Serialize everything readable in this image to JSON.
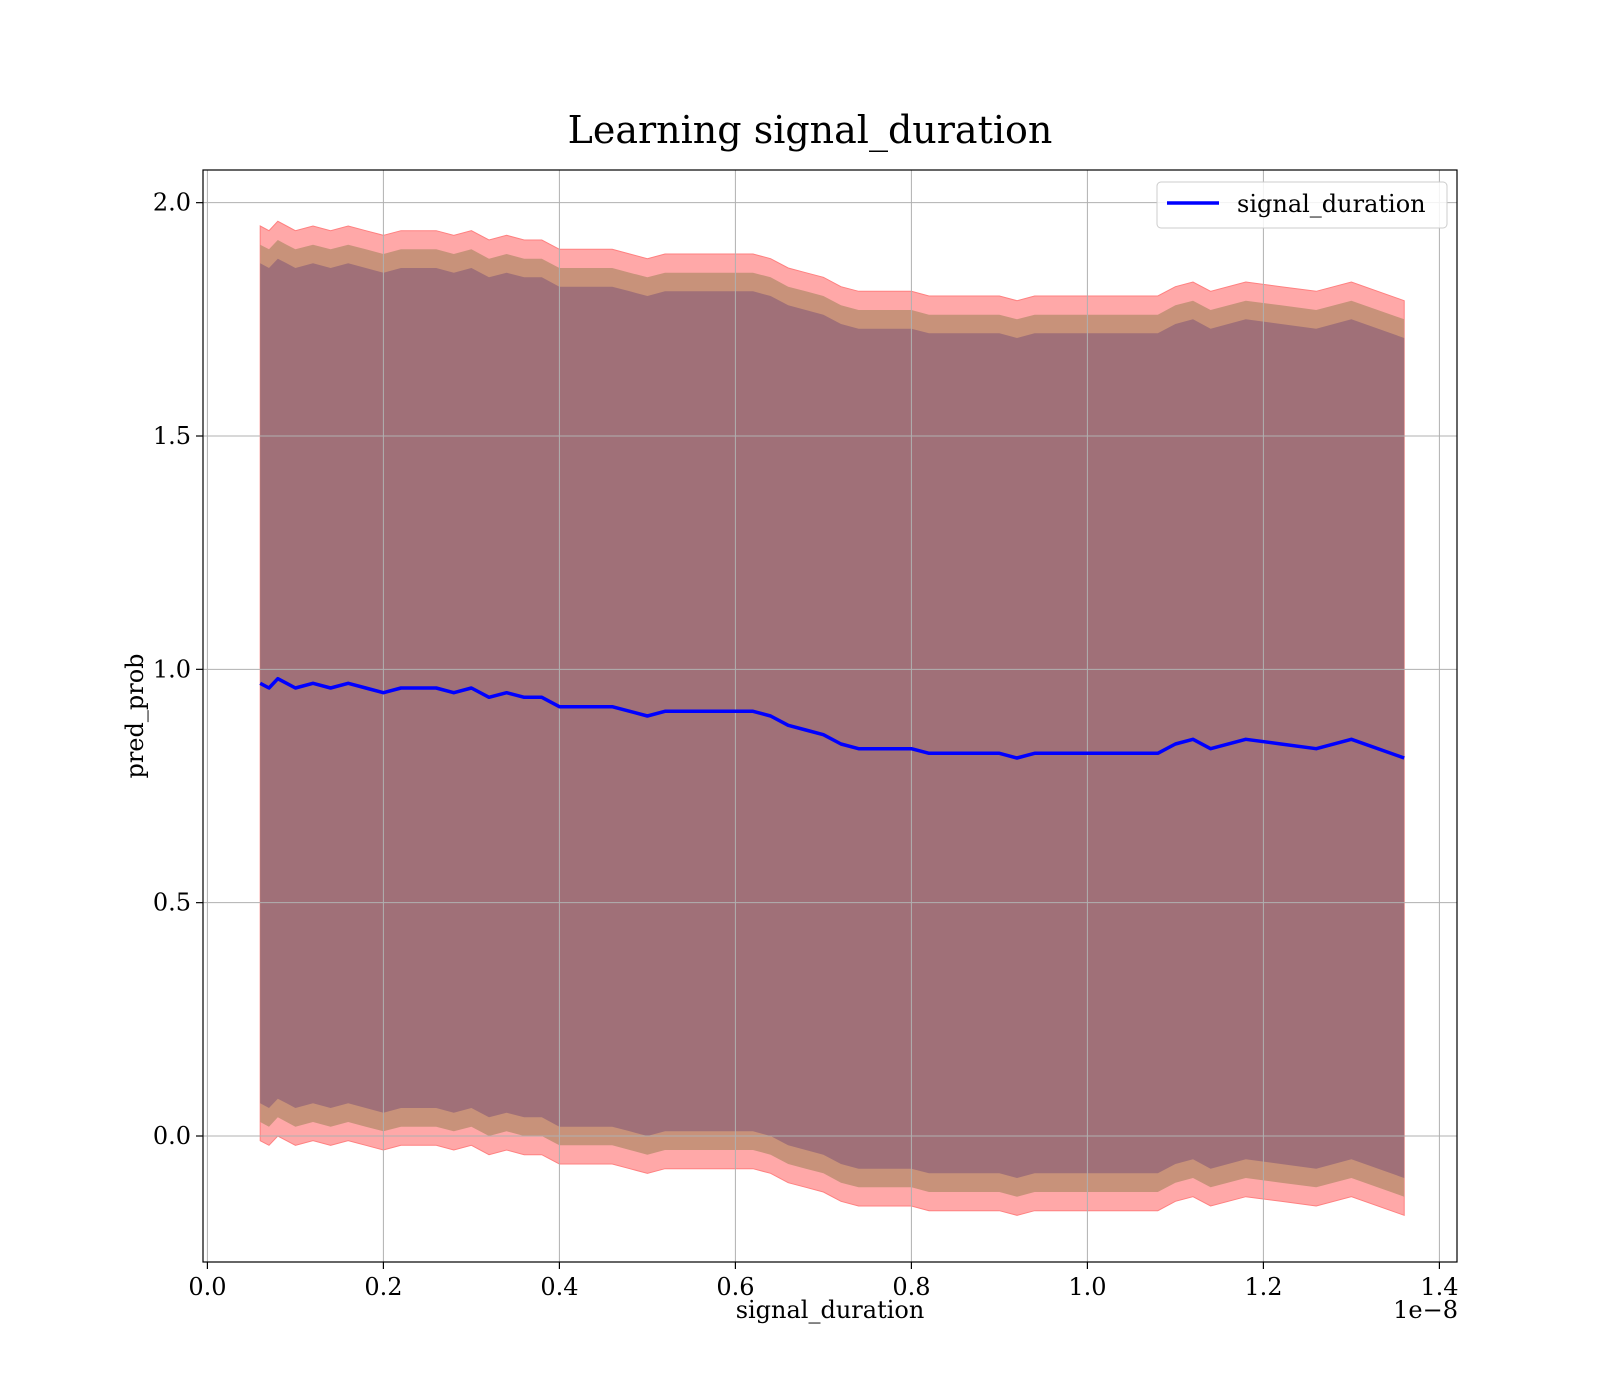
{
  "chart_data": {
    "type": "line",
    "title": "Learning signal_duration",
    "xlabel": "signal_duration",
    "ylabel": "pred_prob",
    "x_offset_label": "1e−8",
    "xlim": [
      -0.005,
      1.42
    ],
    "ylim": [
      -0.27,
      2.07
    ],
    "x_ticks": [
      0.0,
      0.2,
      0.4,
      0.6,
      0.8,
      1.0,
      1.2,
      1.4
    ],
    "x_tick_labels": [
      "0.0",
      "0.2",
      "0.4",
      "0.6",
      "0.8",
      "1.0",
      "1.2",
      "1.4"
    ],
    "y_ticks": [
      0.0,
      0.5,
      1.0,
      1.5,
      2.0
    ],
    "y_tick_labels": [
      "0.0",
      "0.5",
      "1.0",
      "1.5",
      "2.0"
    ],
    "grid": true,
    "legend_position": "top-right",
    "colors": {
      "line": "#0000ff",
      "outer_band": "#ff9999",
      "middle_band": "#c8927a",
      "inner_band": "#a07078",
      "grid": "#b0b0b0"
    },
    "x": [
      0.06,
      0.07,
      0.08,
      0.09,
      0.1,
      0.12,
      0.14,
      0.16,
      0.18,
      0.2,
      0.22,
      0.24,
      0.26,
      0.28,
      0.3,
      0.32,
      0.34,
      0.36,
      0.38,
      0.4,
      0.42,
      0.44,
      0.46,
      0.48,
      0.5,
      0.52,
      0.54,
      0.56,
      0.58,
      0.6,
      0.62,
      0.64,
      0.66,
      0.68,
      0.7,
      0.72,
      0.74,
      0.76,
      0.78,
      0.8,
      0.82,
      0.84,
      0.86,
      0.88,
      0.9,
      0.92,
      0.94,
      0.96,
      0.98,
      1.0,
      1.02,
      1.04,
      1.06,
      1.08,
      1.1,
      1.12,
      1.14,
      1.18,
      1.22,
      1.26,
      1.3,
      1.36
    ],
    "series": [
      {
        "name": "signal_duration",
        "values": [
          0.97,
          0.96,
          0.98,
          0.97,
          0.96,
          0.97,
          0.96,
          0.97,
          0.96,
          0.95,
          0.96,
          0.96,
          0.96,
          0.95,
          0.96,
          0.94,
          0.95,
          0.94,
          0.94,
          0.92,
          0.92,
          0.92,
          0.92,
          0.91,
          0.9,
          0.91,
          0.91,
          0.91,
          0.91,
          0.91,
          0.91,
          0.9,
          0.88,
          0.87,
          0.86,
          0.84,
          0.83,
          0.83,
          0.83,
          0.83,
          0.82,
          0.82,
          0.82,
          0.82,
          0.82,
          0.81,
          0.82,
          0.82,
          0.82,
          0.82,
          0.82,
          0.82,
          0.82,
          0.82,
          0.84,
          0.85,
          0.83,
          0.85,
          0.84,
          0.83,
          0.85,
          0.81
        ]
      }
    ],
    "bands": [
      {
        "role": "outer",
        "offset": 0.98
      },
      {
        "role": "middle",
        "offset": 0.94
      },
      {
        "role": "inner",
        "offset": 0.9
      }
    ]
  }
}
